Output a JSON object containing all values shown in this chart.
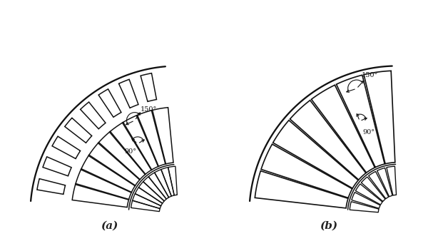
{
  "fig_width": 6.14,
  "fig_height": 3.52,
  "dpi": 100,
  "background": "#ffffff",
  "label_a": "(a)",
  "label_b": "(b)",
  "label_color": "#222222",
  "angle_150": "150°",
  "angle_90": "90°",
  "line_color": "#111111",
  "lw": 1.1
}
